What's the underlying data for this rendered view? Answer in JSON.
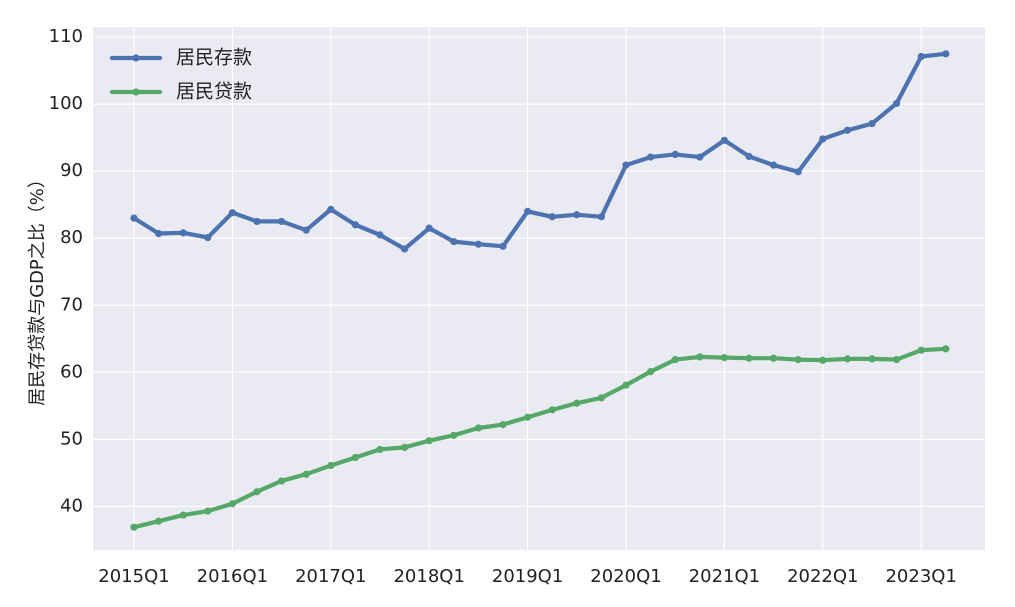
{
  "chart_data": {
    "type": "line",
    "title": "",
    "xlabel": "",
    "ylabel": "居民存贷款与GDP之比（%）",
    "ylim": [
      33.5,
      111.5
    ],
    "yticks": [
      40,
      50,
      60,
      70,
      80,
      90,
      100,
      110
    ],
    "x_tick_labels": [
      "2015Q1",
      "2016Q1",
      "2017Q1",
      "2018Q1",
      "2019Q1",
      "2020Q1",
      "2021Q1",
      "2022Q1",
      "2023Q1"
    ],
    "categories": [
      "2015Q1",
      "2015Q2",
      "2015Q3",
      "2015Q4",
      "2016Q1",
      "2016Q2",
      "2016Q3",
      "2016Q4",
      "2017Q1",
      "2017Q2",
      "2017Q3",
      "2017Q4",
      "2018Q1",
      "2018Q2",
      "2018Q3",
      "2018Q4",
      "2019Q1",
      "2019Q2",
      "2019Q3",
      "2019Q4",
      "2020Q1",
      "2020Q2",
      "2020Q3",
      "2020Q4",
      "2021Q1",
      "2021Q2",
      "2021Q3",
      "2021Q4",
      "2022Q1",
      "2022Q2",
      "2022Q3",
      "2022Q4",
      "2023Q1",
      "2023Q2"
    ],
    "grid": true,
    "legend_position": "top-left",
    "series": [
      {
        "name": "居民存款",
        "color": "#4C72B0",
        "values": [
          83.0,
          80.7,
          80.8,
          80.1,
          83.8,
          82.5,
          82.5,
          81.2,
          84.3,
          82.0,
          80.5,
          78.4,
          81.5,
          79.5,
          79.1,
          78.8,
          84.0,
          83.2,
          83.5,
          83.2,
          90.9,
          92.1,
          92.5,
          92.1,
          94.6,
          92.2,
          90.9,
          89.9,
          94.8,
          96.1,
          97.1,
          100.1,
          107.1,
          107.5
        ]
      },
      {
        "name": "居民贷款",
        "color": "#55A868",
        "values": [
          36.9,
          37.8,
          38.7,
          39.3,
          40.4,
          42.2,
          43.8,
          44.8,
          46.1,
          47.3,
          48.5,
          48.8,
          49.8,
          50.6,
          51.7,
          52.2,
          53.3,
          54.4,
          55.4,
          56.2,
          58.1,
          60.1,
          61.9,
          62.3,
          62.2,
          62.1,
          62.1,
          61.9,
          61.8,
          62.0,
          62.0,
          61.9,
          63.3,
          63.5
        ]
      }
    ]
  }
}
